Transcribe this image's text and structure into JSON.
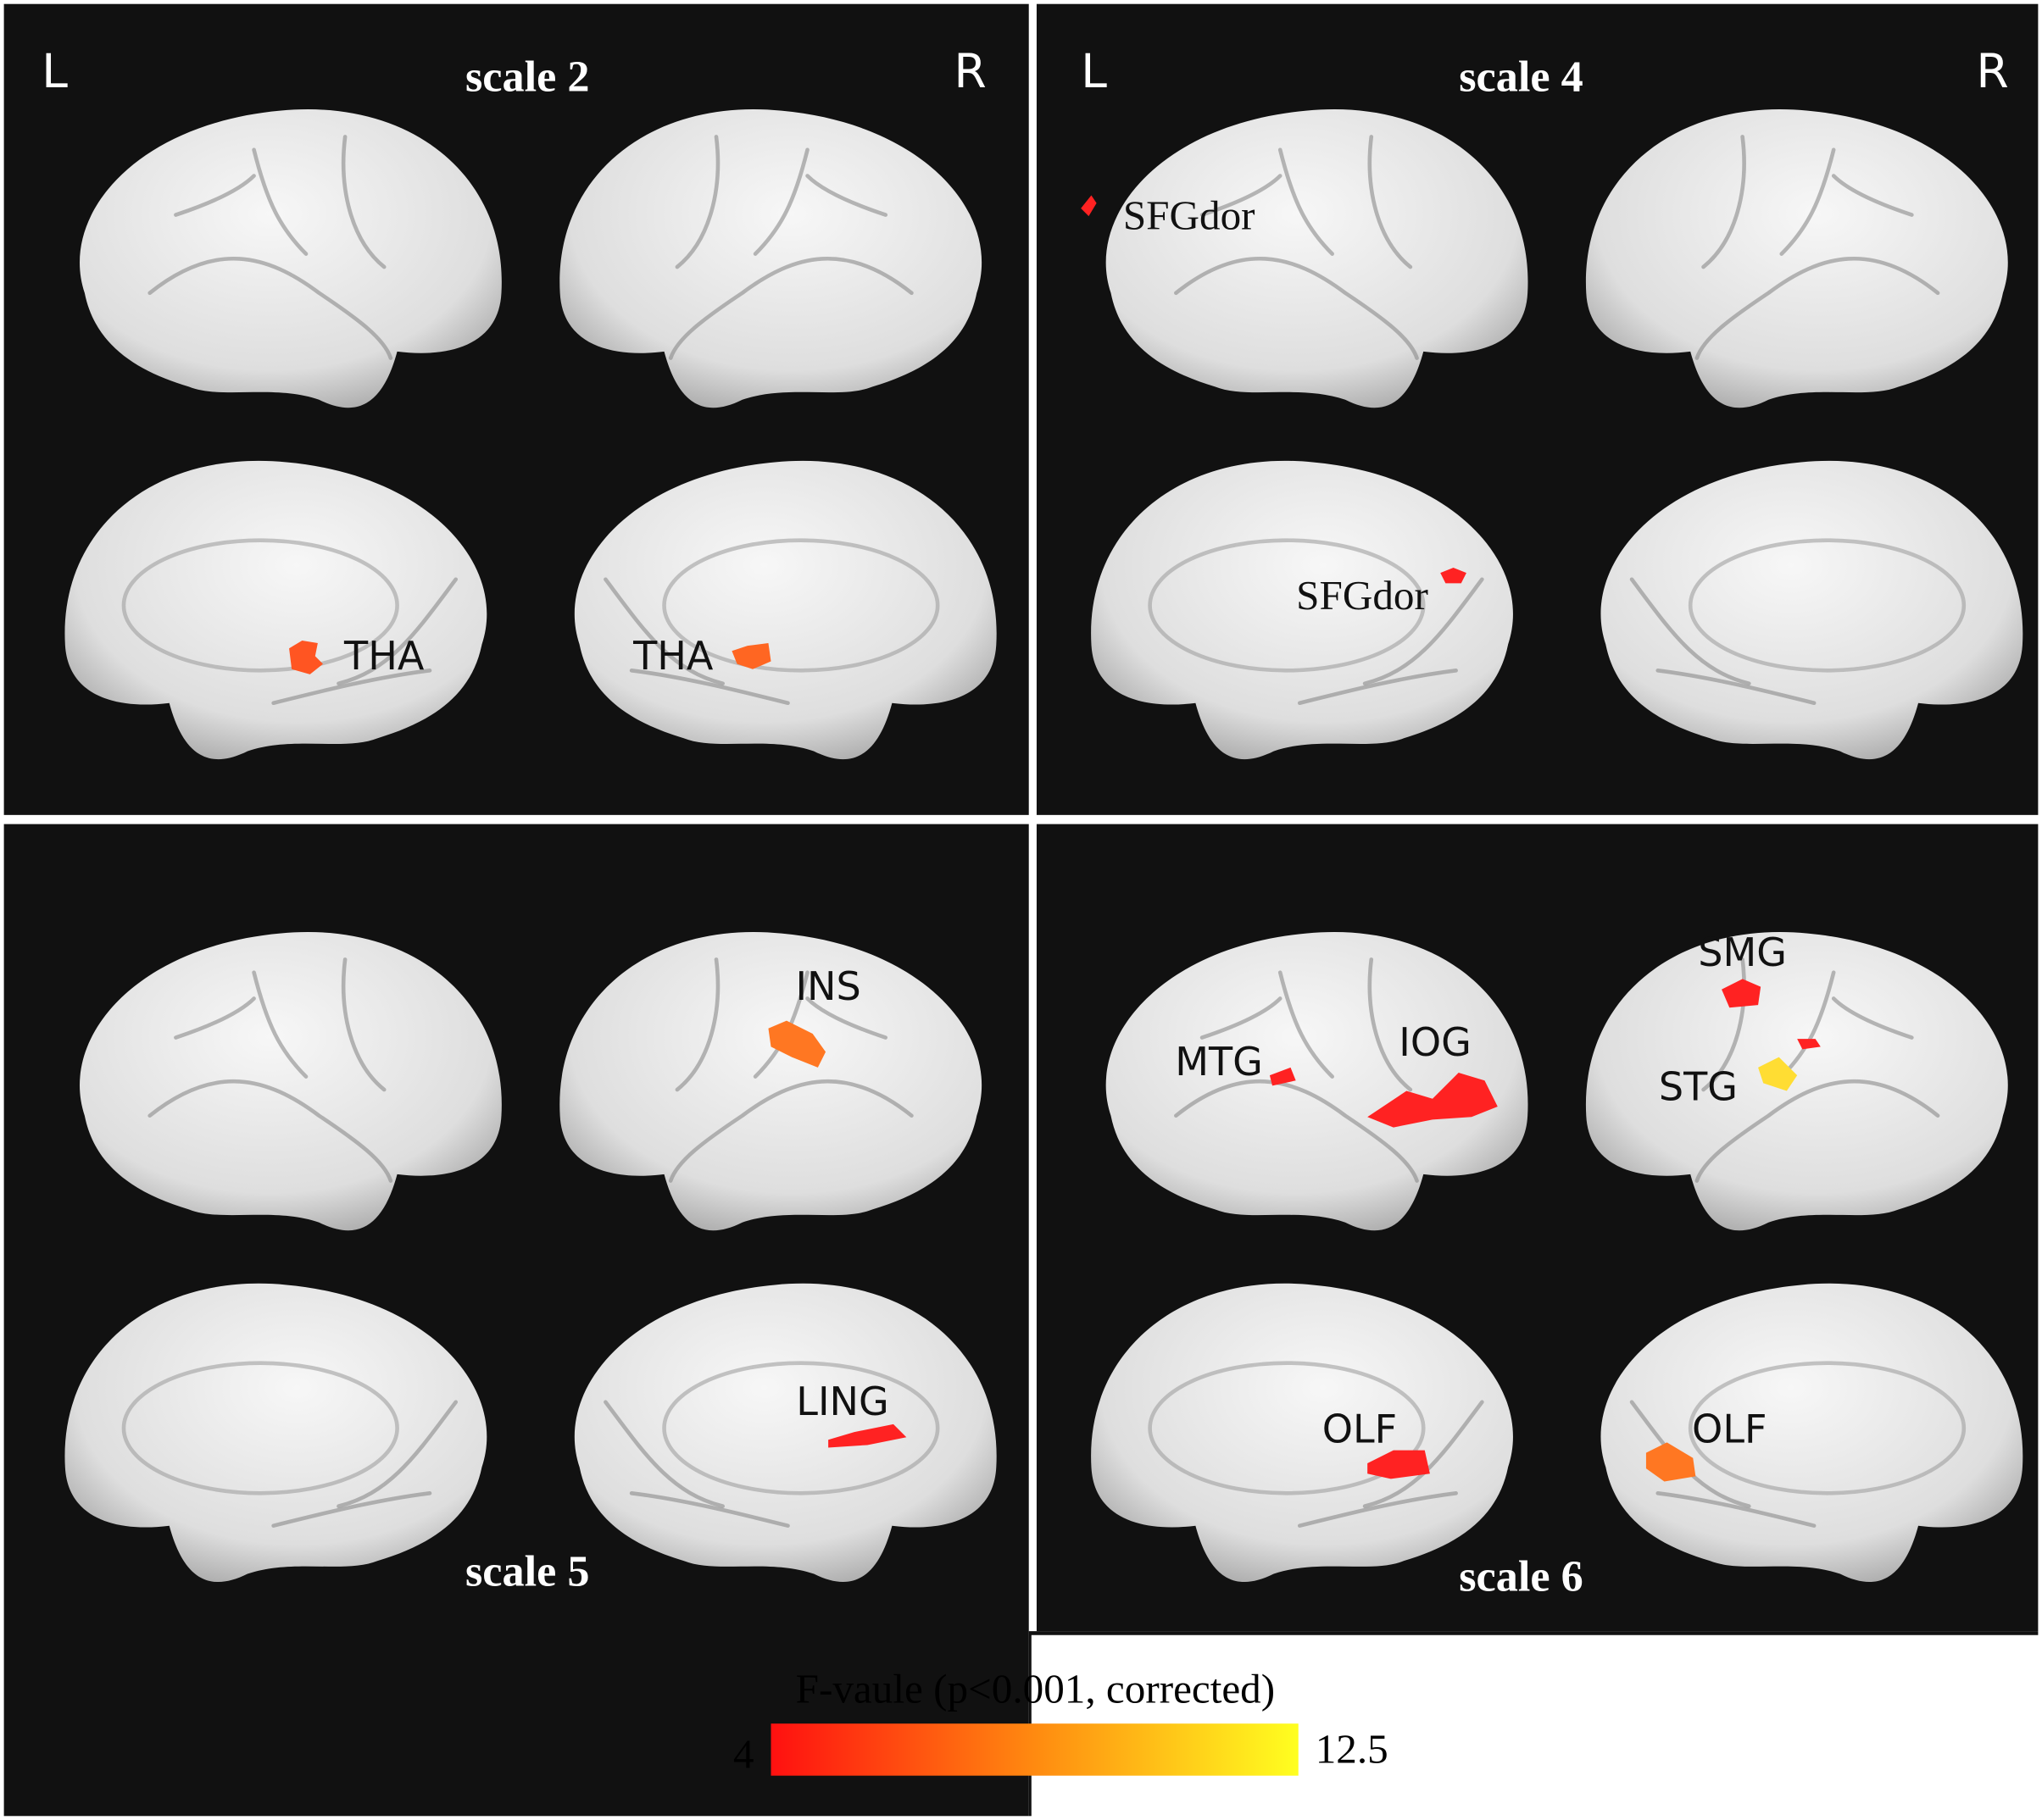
{
  "panels": [
    {
      "title": "scale 2",
      "left": "L",
      "right": "R",
      "labels": [
        "THA",
        "THA"
      ]
    },
    {
      "title": "scale 4",
      "left": "L",
      "right": "R",
      "labels": [
        "SFGdor",
        "SFGdor"
      ]
    },
    {
      "title": "scale 5",
      "labels": [
        "INS",
        "LING"
      ]
    },
    {
      "title": "scale 6",
      "labels": [
        "MTG",
        "IOG",
        "SMG",
        "STG",
        "OLF",
        "OLF"
      ]
    }
  ],
  "colorbar": {
    "title": "F-vaule (p<0.001, corrected)",
    "min": 4,
    "max": 12.5
  }
}
